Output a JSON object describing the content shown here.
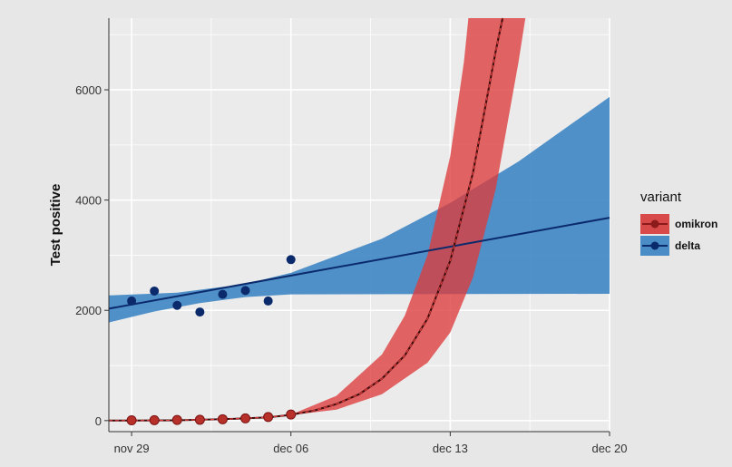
{
  "chart_data": {
    "type": "line",
    "ylabel": "Test positive",
    "x_ticks": [
      "nov 29",
      "dec 06",
      "dec 13",
      "dec 20"
    ],
    "x_tick_dates": [
      "2021-11-29",
      "2021-12-06",
      "2021-12-13",
      "2021-12-20"
    ],
    "xlim": [
      "2021-11-28",
      "2021-12-20"
    ],
    "y_ticks": [
      0,
      2000,
      4000,
      6000
    ],
    "ylim": [
      -200,
      7300
    ],
    "grid": true,
    "legend": {
      "title": "variant",
      "placement": "right",
      "entries": [
        {
          "label": "omikron",
          "line_color": "#8b1a1a",
          "fill_color": "#d84a4a"
        },
        {
          "label": "delta",
          "line_color": "#0b2a6b",
          "fill_color": "#4a8dc6"
        }
      ]
    },
    "series": [
      {
        "name": "omikron",
        "color": "#8b1a1a",
        "band_color": "#dc3b3b",
        "points": [
          {
            "x": "2021-11-29",
            "y": 5
          },
          {
            "x": "2021-11-30",
            "y": 8
          },
          {
            "x": "2021-12-01",
            "y": 12
          },
          {
            "x": "2021-12-02",
            "y": 15
          },
          {
            "x": "2021-12-03",
            "y": 25
          },
          {
            "x": "2021-12-04",
            "y": 40
          },
          {
            "x": "2021-12-05",
            "y": 65
          },
          {
            "x": "2021-12-06",
            "y": 110
          }
        ],
        "fit": [
          {
            "x": "2021-11-28",
            "y": 0
          },
          {
            "x": "2021-11-29",
            "y": 0
          },
          {
            "x": "2021-12-01",
            "y": 5
          },
          {
            "x": "2021-12-03",
            "y": 25
          },
          {
            "x": "2021-12-05",
            "y": 60
          },
          {
            "x": "2021-12-06",
            "y": 105
          },
          {
            "x": "2021-12-07",
            "y": 180
          },
          {
            "x": "2021-12-08",
            "y": 300
          },
          {
            "x": "2021-12-09",
            "y": 480
          },
          {
            "x": "2021-12-10",
            "y": 760
          },
          {
            "x": "2021-12-11",
            "y": 1180
          },
          {
            "x": "2021-12-12",
            "y": 1850
          },
          {
            "x": "2021-12-13",
            "y": 2900
          },
          {
            "x": "2021-12-14",
            "y": 4500
          },
          {
            "x": "2021-12-15",
            "y": 6700
          },
          {
            "x": "2021-12-15.3",
            "y": 7300
          }
        ],
        "band_lower": [
          {
            "x": "2021-12-06",
            "y": 100
          },
          {
            "x": "2021-12-08",
            "y": 200
          },
          {
            "x": "2021-12-10",
            "y": 480
          },
          {
            "x": "2021-12-12",
            "y": 1050
          },
          {
            "x": "2021-12-13",
            "y": 1600
          },
          {
            "x": "2021-12-14",
            "y": 2600
          },
          {
            "x": "2021-12-15",
            "y": 4200
          },
          {
            "x": "2021-12-16",
            "y": 6500
          },
          {
            "x": "2021-12-16.3",
            "y": 7300
          }
        ],
        "band_upper": [
          {
            "x": "2021-12-06",
            "y": 110
          },
          {
            "x": "2021-12-08",
            "y": 450
          },
          {
            "x": "2021-12-10",
            "y": 1200
          },
          {
            "x": "2021-12-11",
            "y": 1900
          },
          {
            "x": "2021-12-12",
            "y": 3000
          },
          {
            "x": "2021-12-13",
            "y": 4800
          },
          {
            "x": "2021-12-13.6",
            "y": 6500
          },
          {
            "x": "2021-12-13.8",
            "y": 7300
          }
        ]
      },
      {
        "name": "delta",
        "color": "#0b2a6b",
        "band_color": "#3f86c4",
        "points": [
          {
            "x": "2021-11-29",
            "y": 2170
          },
          {
            "x": "2021-11-30",
            "y": 2350
          },
          {
            "x": "2021-12-01",
            "y": 2090
          },
          {
            "x": "2021-12-02",
            "y": 1970
          },
          {
            "x": "2021-12-03",
            "y": 2290
          },
          {
            "x": "2021-12-04",
            "y": 2360
          },
          {
            "x": "2021-12-05",
            "y": 2170
          },
          {
            "x": "2021-12-06",
            "y": 2920
          }
        ],
        "fit": [
          {
            "x": "2021-11-28",
            "y": 2030
          },
          {
            "x": "2021-12-20",
            "y": 3680
          }
        ],
        "band_upper": [
          {
            "x": "2021-11-28",
            "y": 2270
          },
          {
            "x": "2021-12-01",
            "y": 2320
          },
          {
            "x": "2021-12-04",
            "y": 2480
          },
          {
            "x": "2021-12-06",
            "y": 2680
          },
          {
            "x": "2021-12-10",
            "y": 3300
          },
          {
            "x": "2021-12-13",
            "y": 3950
          },
          {
            "x": "2021-12-16",
            "y": 4700
          },
          {
            "x": "2021-12-20",
            "y": 5870
          }
        ],
        "band_lower": [
          {
            "x": "2021-11-28",
            "y": 1780
          },
          {
            "x": "2021-11-30",
            "y": 1980
          },
          {
            "x": "2021-12-02",
            "y": 2130
          },
          {
            "x": "2021-12-04",
            "y": 2240
          },
          {
            "x": "2021-12-06",
            "y": 2290
          },
          {
            "x": "2021-12-20",
            "y": 2300
          }
        ]
      }
    ]
  }
}
